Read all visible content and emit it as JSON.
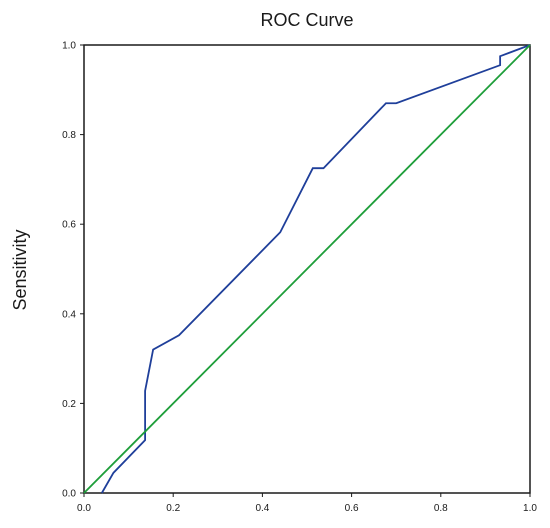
{
  "chart_data": {
    "type": "line",
    "title": "ROC Curve",
    "xlabel": "",
    "ylabel": "Sensitivity",
    "xlim": [
      0,
      1
    ],
    "ylim": [
      0,
      1
    ],
    "x_ticks": [
      "0.0",
      "0.2",
      "0.4",
      "0.6",
      "0.8",
      "1.0"
    ],
    "y_ticks": [
      "0.0",
      "0.2",
      "0.4",
      "0.6",
      "0.8",
      "1.0"
    ],
    "grid": false,
    "legend": "none",
    "series": [
      {
        "color": "#1f3f9a",
        "x": [
          0.04,
          0.066,
          0.137,
          0.137,
          0.155,
          0.213,
          0.44,
          0.513,
          0.537,
          0.677,
          0.7,
          0.933,
          0.933,
          1.0
        ],
        "y": [
          0.0,
          0.045,
          0.118,
          0.228,
          0.32,
          0.352,
          0.582,
          0.725,
          0.725,
          0.87,
          0.87,
          0.955,
          0.975,
          1.0
        ]
      },
      {
        "color": "#1e9e3a",
        "x": [
          0.0,
          1.0
        ],
        "y": [
          0.0,
          1.0
        ]
      }
    ]
  }
}
